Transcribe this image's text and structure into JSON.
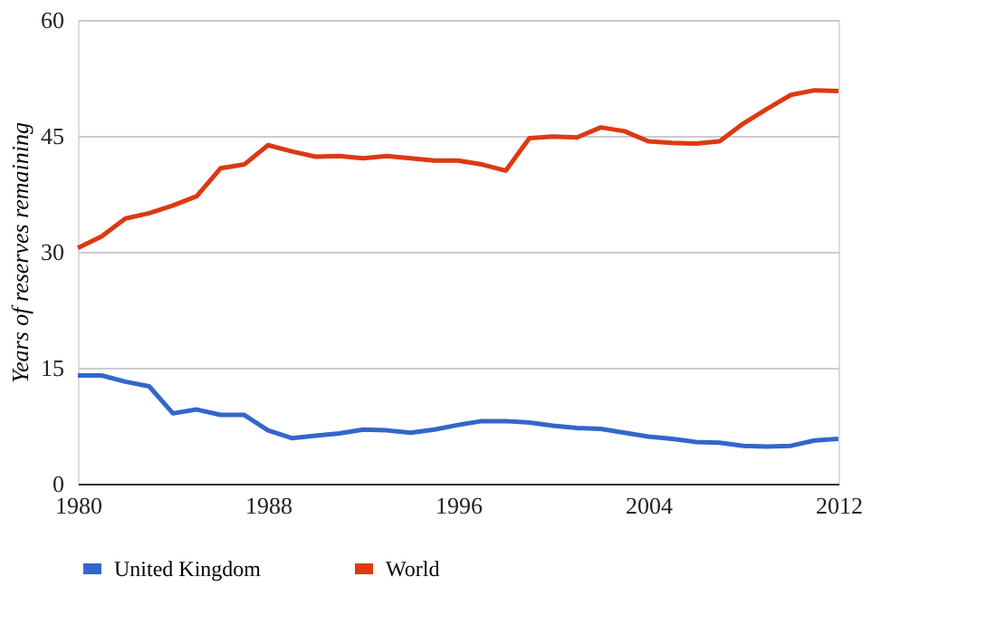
{
  "chart_data": {
    "type": "line",
    "ylabel": "Years of reserves remaining",
    "x": [
      1980,
      1981,
      1982,
      1983,
      1984,
      1985,
      1986,
      1987,
      1988,
      1989,
      1990,
      1991,
      1992,
      1993,
      1994,
      1995,
      1996,
      1997,
      1998,
      1999,
      2000,
      2001,
      2002,
      2003,
      2004,
      2005,
      2006,
      2007,
      2008,
      2009,
      2010,
      2011,
      2012
    ],
    "series": [
      {
        "name": "United Kingdom",
        "color": "#3366cc",
        "values": [
          14,
          14,
          13.2,
          12.6,
          9.1,
          9.6,
          8.9,
          8.9,
          6.9,
          5.9,
          6.2,
          6.5,
          7,
          6.9,
          6.6,
          7,
          7.6,
          8.1,
          8.1,
          7.9,
          7.5,
          7.2,
          7.1,
          6.6,
          6.1,
          5.8,
          5.4,
          5.3,
          4.9,
          4.8,
          4.9,
          5.6,
          5.8
        ]
      },
      {
        "name": "World",
        "color": "#dc3912",
        "values": [
          30.5,
          32,
          34.3,
          35,
          36,
          37.2,
          40.8,
          41.3,
          43.8,
          43,
          42.3,
          42.4,
          42.1,
          42.4,
          42.1,
          41.8,
          41.8,
          41.3,
          40.5,
          44.7,
          44.9,
          44.8,
          46.1,
          45.6,
          44.3,
          44.1,
          44,
          44.3,
          46.6,
          48.5,
          50.3,
          50.9,
          50.8
        ]
      }
    ],
    "xlim": [
      1980,
      2012
    ],
    "xticks": [
      1980,
      1988,
      1996,
      2004,
      2012
    ],
    "ylim": [
      0,
      60
    ],
    "yticks": [
      0,
      15,
      30,
      45,
      60
    ],
    "grid": "y",
    "legend": "bottom",
    "marker": "none",
    "line_style": "solid"
  }
}
